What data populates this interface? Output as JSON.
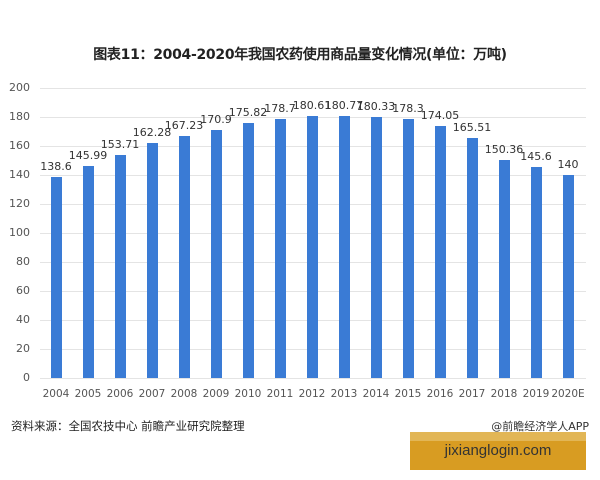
{
  "chart_data": {
    "type": "bar",
    "title": "图表11：2004-2020年我国农药使用商品量变化情况(单位：万吨)",
    "xlabel": "",
    "ylabel": "",
    "unit": "万吨",
    "ylim": [
      0,
      200
    ],
    "yticks": [
      0,
      20,
      40,
      60,
      80,
      100,
      120,
      140,
      160,
      180,
      200
    ],
    "grid": true,
    "legend": null,
    "categories": [
      "2004",
      "2005",
      "2006",
      "2007",
      "2008",
      "2009",
      "2010",
      "2011",
      "2012",
      "2013",
      "2014",
      "2015",
      "2016",
      "2017",
      "2018",
      "2019",
      "2020E"
    ],
    "values": [
      138.6,
      145.99,
      153.71,
      162.28,
      167.23,
      170.9,
      175.82,
      178.7,
      180.61,
      180.77,
      180.33,
      178.3,
      174.05,
      165.51,
      150.36,
      145.6,
      140
    ],
    "labels": [
      "138.6",
      "145.99",
      "153.71",
      "162.28",
      "167.23",
      "170.9",
      "175.82",
      "178.7",
      "180.61",
      "180.77",
      "180.33",
      "178.3",
      "174.05",
      "165.51",
      "150.36",
      "145.6",
      "140"
    ],
    "bar_color": "#3a7bd5"
  },
  "footer": {
    "source": "资料来源：全国农技中心 前瞻产业研究院整理",
    "credit": "@前瞻经济学人APP",
    "watermark": "jixianglogin.com"
  }
}
